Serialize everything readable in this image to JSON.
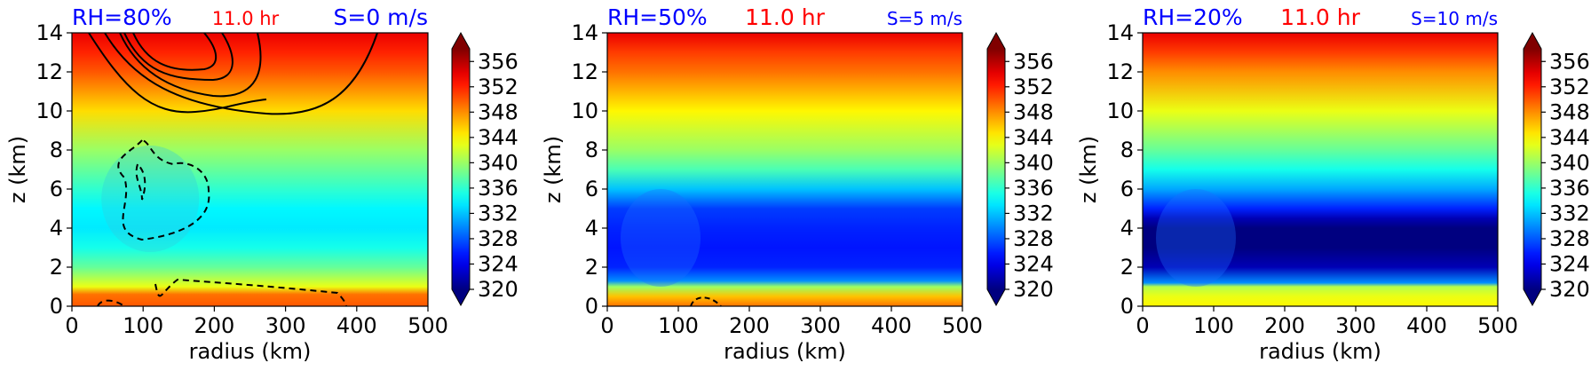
{
  "chart_data": [
    {
      "type": "contourf",
      "panel": "left",
      "title_left": "RH=80%",
      "title_center": "11.0 hr",
      "title_right": "S=0 m/s",
      "title_colors": {
        "left": "#0000ff",
        "center": "#ff0000",
        "right": "#0000ff"
      },
      "xlabel": "radius (km)",
      "ylabel": "z (km)",
      "xlim": [
        0,
        500
      ],
      "ylim": [
        0,
        14
      ],
      "xticks": [
        0,
        100,
        200,
        300,
        400,
        500
      ],
      "yticks": [
        0,
        2,
        4,
        6,
        8,
        10,
        12,
        14
      ],
      "colorbar": {
        "min": 320,
        "max": 358,
        "ticks": [
          320,
          324,
          328,
          332,
          336,
          340,
          344,
          348,
          352,
          356
        ],
        "extend": "both"
      },
      "profile": {
        "z": [
          0,
          0.6,
          1,
          2,
          3,
          4,
          5,
          6,
          8,
          10,
          12,
          13,
          14
        ],
        "theta": [
          350,
          349,
          343,
          338,
          335,
          333.5,
          334,
          336,
          340,
          345,
          350,
          352,
          354
        ]
      },
      "has_contours": true
    },
    {
      "type": "contourf",
      "panel": "middle",
      "title_left": "RH=50%",
      "title_center": "11.0 hr",
      "title_right": "S=5 m/s",
      "title_colors": {
        "left": "#0000ff",
        "center": "#ff0000",
        "right": "#0000ff"
      },
      "xlabel": "radius (km)",
      "ylabel": "z (km)",
      "xlim": [
        0,
        500
      ],
      "ylim": [
        0,
        14
      ],
      "xticks": [
        0,
        100,
        200,
        300,
        400,
        500
      ],
      "yticks": [
        0,
        2,
        4,
        6,
        8,
        10,
        12,
        14
      ],
      "colorbar": {
        "min": 320,
        "max": 358,
        "ticks": [
          320,
          324,
          328,
          332,
          336,
          340,
          344,
          348,
          352,
          356
        ],
        "extend": "both"
      },
      "profile": {
        "z": [
          0,
          0.5,
          1,
          1.3,
          2,
          3,
          4,
          5,
          6,
          7,
          8,
          10,
          12,
          13,
          14
        ],
        "theta": [
          349,
          346,
          340,
          330,
          326,
          325.5,
          326,
          327,
          332,
          337,
          340,
          344,
          349,
          351,
          354
        ]
      },
      "has_contours": true
    },
    {
      "type": "contourf",
      "panel": "right",
      "title_left": "RH=20%",
      "title_center": "11.0 hr",
      "title_right": "S=10 m/s",
      "title_colors": {
        "left": "#0000ff",
        "center": "#ff0000",
        "right": "#0000ff"
      },
      "xlabel": "radius (km)",
      "ylabel": "z (km)",
      "xlim": [
        0,
        500
      ],
      "ylim": [
        0,
        14
      ],
      "xticks": [
        0,
        100,
        200,
        300,
        400,
        500
      ],
      "yticks": [
        0,
        2,
        4,
        6,
        8,
        10,
        12,
        14
      ],
      "colorbar": {
        "min": 320,
        "max": 358,
        "ticks": [
          320,
          324,
          328,
          332,
          336,
          340,
          344,
          348,
          352,
          356
        ],
        "extend": "both"
      },
      "profile": {
        "z": [
          0,
          0.5,
          1,
          1.2,
          2,
          3,
          4,
          4.5,
          5,
          6,
          7,
          8,
          10,
          12,
          13,
          14
        ],
        "theta": [
          344,
          343,
          341,
          330,
          322,
          320,
          320,
          322,
          326,
          331,
          335,
          338,
          343,
          348,
          351,
          354
        ]
      },
      "has_contours": false
    }
  ]
}
